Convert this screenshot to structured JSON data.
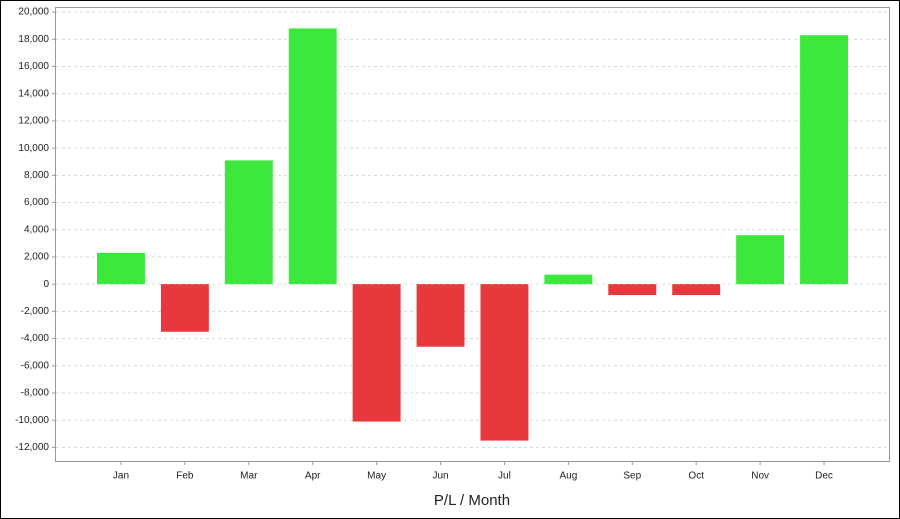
{
  "chart_data": {
    "type": "bar",
    "x_label": "P/L / Month",
    "categories": [
      "Jan",
      "Feb",
      "Mar",
      "Apr",
      "May",
      "Jun",
      "Jul",
      "Aug",
      "Sep",
      "Oct",
      "Nov",
      "Dec"
    ],
    "values": [
      2300,
      -3500,
      9100,
      18800,
      -10100,
      -4600,
      -11500,
      700,
      -800,
      -800,
      3600,
      18300
    ],
    "positive_color": "#3de83d",
    "negative_color": "#e8383d",
    "ylim": [
      -13000,
      20300
    ],
    "yticks": [
      {
        "value": -12000,
        "label": "-12,000"
      },
      {
        "value": -10000,
        "label": "-10,000"
      },
      {
        "value": -8000,
        "label": "-8,000"
      },
      {
        "value": -6000,
        "label": "-6,000"
      },
      {
        "value": -4000,
        "label": "-4,000"
      },
      {
        "value": -2000,
        "label": "-2,000"
      },
      0,
      {
        "value": 2000,
        "label": "2,000"
      },
      {
        "value": 4000,
        "label": "4,000"
      },
      {
        "value": 6000,
        "label": "6,000"
      },
      {
        "value": 8000,
        "label": "8,000"
      },
      {
        "value": 10000,
        "label": "10,000"
      },
      {
        "value": 12000,
        "label": "12,000"
      },
      {
        "value": 14000,
        "label": "14,000"
      },
      {
        "value": 16000,
        "label": "16,000"
      },
      {
        "value": 18000,
        "label": "18,000"
      },
      {
        "value": 20000,
        "label": "20,000"
      }
    ],
    "grid": true
  }
}
